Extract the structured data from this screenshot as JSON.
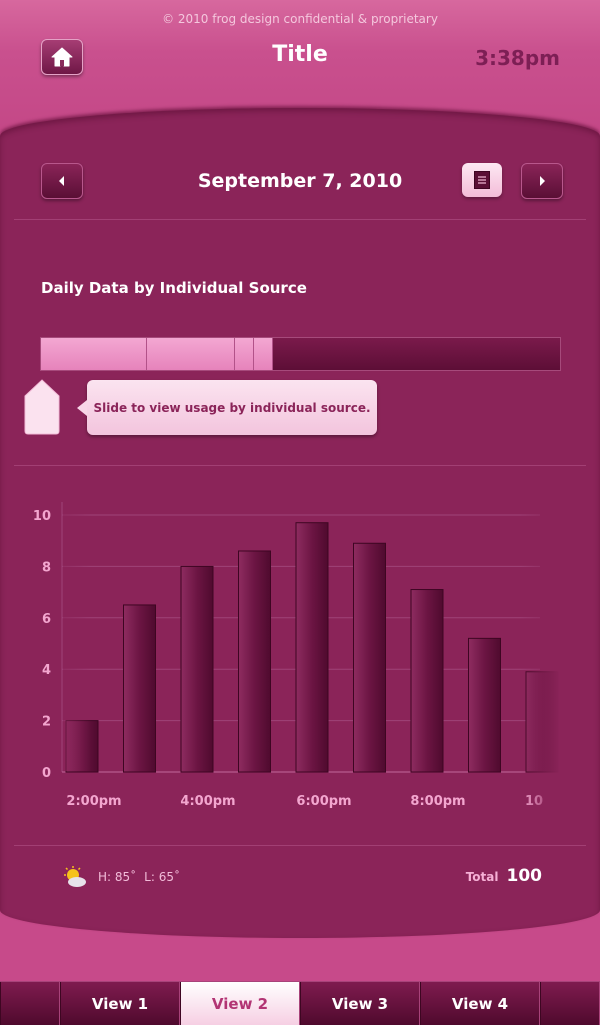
{
  "header": {
    "copyright": "© 2010 frog design confidential & proprietary",
    "title": "Title",
    "time": "3:38pm",
    "home_icon": "home-icon"
  },
  "date_nav": {
    "date": "September 7, 2010",
    "prev_icon": "caret-left-icon",
    "next_icon": "caret-right-icon",
    "list_icon": "list-icon"
  },
  "sources": {
    "title": "Daily Data by Individual Source",
    "tooltip": "Slide to view usage by individual source.",
    "segment_fractions": [
      0.205,
      0.17,
      0.036,
      0.036
    ]
  },
  "chart_data": {
    "type": "bar",
    "y_ticks": [
      "0",
      "2",
      "4",
      "6",
      "8",
      "10"
    ],
    "ylim": [
      0,
      10
    ],
    "x_tick_labels": [
      "2:00pm",
      "4:00pm",
      "6:00pm",
      "8:00pm",
      "10"
    ],
    "values": [
      2.0,
      6.5,
      8.0,
      8.6,
      9.7,
      8.9,
      7.1,
      5.2,
      3.9
    ],
    "grid": true,
    "colors": {
      "bar": "#6a1240",
      "grid": "#9f4379",
      "tick": "#f3a6cf"
    }
  },
  "footer": {
    "weather_icon": "sun-cloud-icon",
    "high": "H: 85˚",
    "low": "L: 65˚",
    "total_label": "Total",
    "total_value": "100"
  },
  "tabs": [
    {
      "label": "View 1",
      "active": false
    },
    {
      "label": "View 2",
      "active": true
    },
    {
      "label": "View 3",
      "active": false
    },
    {
      "label": "View 4",
      "active": false
    }
  ],
  "colors": {
    "frame": "#c74a8a",
    "panel": "#8b2459",
    "accent_light": "#f3a7d2"
  }
}
